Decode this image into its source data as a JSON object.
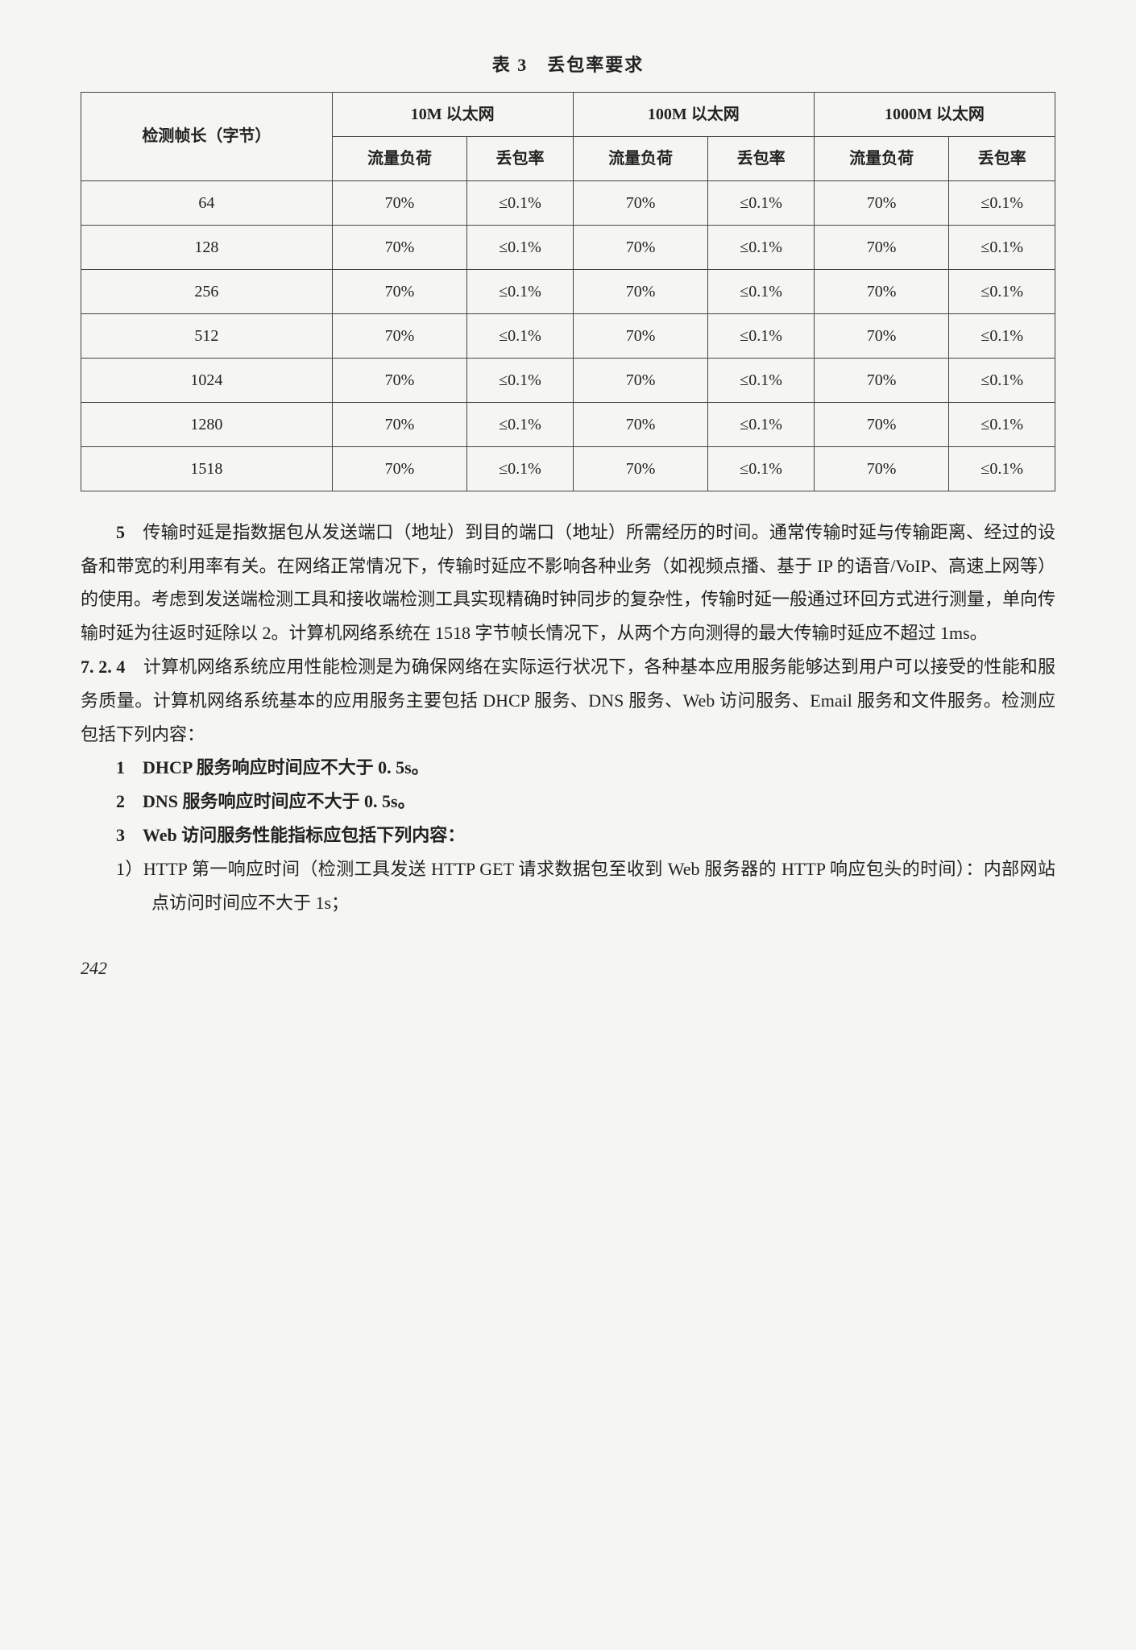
{
  "table": {
    "title": "表 3　丢包率要求",
    "header1": {
      "col1": "检测帧长（字节）",
      "col2": "10M 以太网",
      "col3": "100M 以太网",
      "col4": "1000M 以太网"
    },
    "header2": {
      "load": "流量负荷",
      "loss": "丢包率"
    },
    "rows": [
      {
        "len": "64",
        "l1": "70%",
        "r1": "≤0.1%",
        "l2": "70%",
        "r2": "≤0.1%",
        "l3": "70%",
        "r3": "≤0.1%"
      },
      {
        "len": "128",
        "l1": "70%",
        "r1": "≤0.1%",
        "l2": "70%",
        "r2": "≤0.1%",
        "l3": "70%",
        "r3": "≤0.1%"
      },
      {
        "len": "256",
        "l1": "70%",
        "r1": "≤0.1%",
        "l2": "70%",
        "r2": "≤0.1%",
        "l3": "70%",
        "r3": "≤0.1%"
      },
      {
        "len": "512",
        "l1": "70%",
        "r1": "≤0.1%",
        "l2": "70%",
        "r2": "≤0.1%",
        "l3": "70%",
        "r3": "≤0.1%"
      },
      {
        "len": "1024",
        "l1": "70%",
        "r1": "≤0.1%",
        "l2": "70%",
        "r2": "≤0.1%",
        "l3": "70%",
        "r3": "≤0.1%"
      },
      {
        "len": "1280",
        "l1": "70%",
        "r1": "≤0.1%",
        "l2": "70%",
        "r2": "≤0.1%",
        "l3": "70%",
        "r3": "≤0.1%"
      },
      {
        "len": "1518",
        "l1": "70%",
        "r1": "≤0.1%",
        "l2": "70%",
        "r2": "≤0.1%",
        "l3": "70%",
        "r3": "≤0.1%"
      }
    ]
  },
  "para5_num": "5",
  "para5_text": "　传输时延是指数据包从发送端口（地址）到目的端口（地址）所需经历的时间。通常传输时延与传输距离、经过的设备和带宽的利用率有关。在网络正常情况下，传输时延应不影响各种业务（如视频点播、基于 IP 的语音/VoIP、高速上网等）的使用。考虑到发送端检测工具和接收端检测工具实现精确时钟同步的复杂性，传输时延一般通过环回方式进行测量，单向传输时延为往返时延除以 2。计算机网络系统在 1518 字节帧长情况下，从两个方向测得的最大传输时延应不超过 1ms。",
  "para724_num": "7. 2. 4",
  "para724_text": "　计算机网络系统应用性能检测是为确保网络在实际运行状况下，各种基本应用服务能够达到用户可以接受的性能和服务质量。计算机网络系统基本的应用服务主要包括 DHCP 服务、DNS 服务、Web 访问服务、Email 服务和文件服务。检测应包括下列内容：",
  "items": {
    "i1": "1　DHCP 服务响应时间应不大于 0. 5s。",
    "i2": "2　DNS 服务响应时间应不大于 0. 5s。",
    "i3": "3　Web 访问服务性能指标应包括下列内容：",
    "s1": "1）HTTP 第一响应时间（检测工具发送 HTTP GET 请求数据包至收到 Web 服务器的 HTTP 响应包头的时间）：内部网站点访问时间应不大于 1s；"
  },
  "page_number": "242"
}
